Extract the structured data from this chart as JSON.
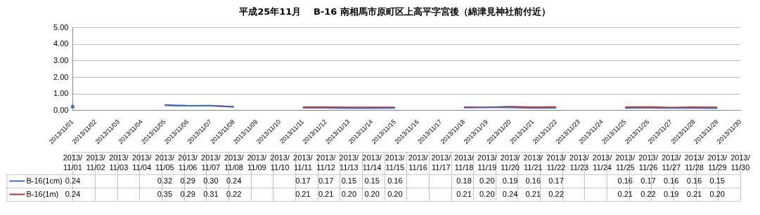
{
  "chart_data": {
    "type": "line",
    "title": "平成25年11月　 B-16 南相馬市原町区上高平字宮後（綿津見神社前付近）",
    "categories": [
      "2013/11/01",
      "2013/11/02",
      "2013/11/03",
      "2013/11/04",
      "2013/11/05",
      "2013/11/06",
      "2013/11/07",
      "2013/11/08",
      "2013/11/09",
      "2013/11/10",
      "2013/11/11",
      "2013/11/12",
      "2013/11/13",
      "2013/11/14",
      "2013/11/15",
      "2013/11/16",
      "2013/11/17",
      "2013/11/18",
      "2013/11/19",
      "2013/11/20",
      "2013/11/21",
      "2013/11/22",
      "2013/11/23",
      "2013/11/24",
      "2013/11/25",
      "2013/11/26",
      "2013/11/27",
      "2013/11/28",
      "2013/11/29",
      "2013/11/30"
    ],
    "series": [
      {
        "name": "B-16(1cm)",
        "color": "#3d6fc4",
        "values": [
          0.24,
          null,
          null,
          null,
          0.32,
          0.29,
          0.3,
          0.24,
          null,
          null,
          0.17,
          0.17,
          0.15,
          0.15,
          0.16,
          null,
          null,
          0.18,
          0.2,
          0.19,
          0.16,
          0.17,
          null,
          null,
          0.16,
          0.17,
          0.16,
          0.16,
          0.15,
          null
        ],
        "value_labels": [
          "0.24",
          null,
          null,
          null,
          "0.32",
          "0.29",
          "0.30",
          "0.24",
          null,
          null,
          "0.17",
          "0.17",
          "0.15",
          "0.15",
          "0.16",
          null,
          null,
          "0.18",
          "0.20",
          "0.19",
          "0.16",
          "0.17",
          null,
          null,
          "0.16",
          "0.17",
          "0.16",
          "0.16",
          "0.15",
          null
        ]
      },
      {
        "name": "B-16(1m)",
        "color": "#c0302c",
        "values": [
          0.24,
          null,
          null,
          null,
          0.35,
          0.29,
          0.31,
          0.22,
          null,
          null,
          0.21,
          0.21,
          0.2,
          0.2,
          0.2,
          null,
          null,
          0.21,
          0.2,
          0.24,
          0.21,
          0.22,
          null,
          null,
          0.21,
          0.22,
          0.19,
          0.21,
          0.2,
          null
        ],
        "value_labels": [
          "0.24",
          null,
          null,
          null,
          "0.35",
          "0.29",
          "0.31",
          "0.22",
          null,
          null,
          "0.21",
          "0.21",
          "0.20",
          "0.20",
          "0.20",
          null,
          null,
          "0.21",
          "0.20",
          "0.24",
          "0.21",
          "0.22",
          null,
          null,
          "0.21",
          "0.22",
          "0.19",
          "0.21",
          "0.20",
          null
        ]
      }
    ],
    "ylim": [
      0,
      5
    ],
    "yticks": [
      {
        "value": 0,
        "label": "0.00"
      },
      {
        "value": 1,
        "label": "1.00"
      },
      {
        "value": 2,
        "label": "2.00"
      },
      {
        "value": 3,
        "label": "3.00"
      },
      {
        "value": 4,
        "label": "4.00"
      },
      {
        "value": 5,
        "label": "5.00"
      }
    ],
    "grid": "y",
    "legend": "bottom",
    "marker": "none",
    "line_style": "solid"
  }
}
